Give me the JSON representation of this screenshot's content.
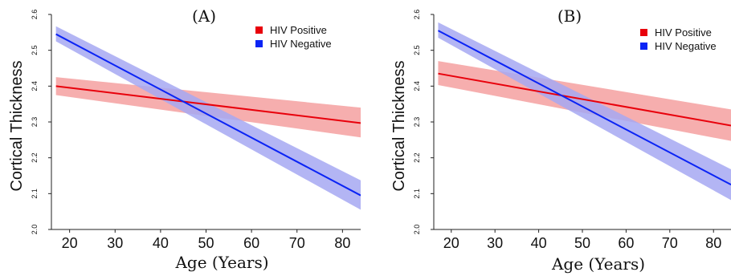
{
  "chart_data": [
    {
      "type": "line",
      "title": "(A)",
      "xlabel": "Age (Years)",
      "ylabel": "Cortical Thickness",
      "xlim": [
        16,
        84
      ],
      "ylim": [
        2.0,
        2.6
      ],
      "xticks": [
        "20",
        "30",
        "40",
        "50",
        "60",
        "70",
        "80"
      ],
      "yticks": [
        "2.0",
        "2.1",
        "2.2",
        "2.3",
        "2.4",
        "2.5",
        "2.6"
      ],
      "x": [
        17,
        84
      ],
      "series": [
        {
          "name": "HIV Positive",
          "color": "#e8000b",
          "band_color": "#f4a0a0",
          "values": [
            2.4,
            2.297
          ],
          "lower": [
            2.375,
            2.257
          ],
          "upper": [
            2.425,
            2.34
          ]
        },
        {
          "name": "HIV Negative",
          "color": "#0b24f5",
          "band_color": "#a6a8f2",
          "values": [
            2.545,
            2.095
          ],
          "lower": [
            2.525,
            2.055
          ],
          "upper": [
            2.567,
            2.137
          ]
        }
      ],
      "legend": "top-right"
    },
    {
      "type": "line",
      "title": "(B)",
      "xlabel": "Age (Years)",
      "ylabel": "Cortical Thickness",
      "xlim": [
        16,
        84
      ],
      "ylim": [
        2.0,
        2.6
      ],
      "xticks": [
        "20",
        "30",
        "40",
        "50",
        "60",
        "70",
        "80"
      ],
      "yticks": [
        "2.0",
        "2.1",
        "2.2",
        "2.3",
        "2.4",
        "2.5",
        "2.6"
      ],
      "x": [
        17,
        84
      ],
      "series": [
        {
          "name": "HIV Positive",
          "color": "#e8000b",
          "band_color": "#f4a0a0",
          "values": [
            2.435,
            2.29
          ],
          "lower": [
            2.403,
            2.247
          ],
          "upper": [
            2.47,
            2.335
          ]
        },
        {
          "name": "HIV Negative",
          "color": "#0b24f5",
          "band_color": "#a6a8f2",
          "values": [
            2.555,
            2.125
          ],
          "lower": [
            2.535,
            2.082
          ],
          "upper": [
            2.578,
            2.168
          ]
        }
      ],
      "legend": "top-right"
    }
  ]
}
